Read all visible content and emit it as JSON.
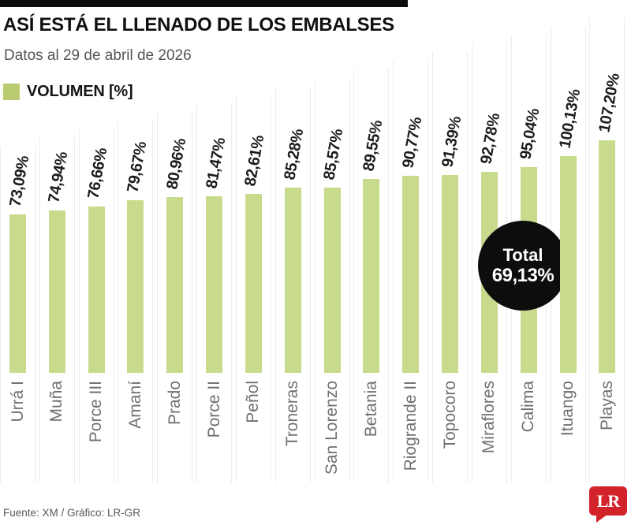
{
  "header": {
    "title": "ASÍ ESTÁ EL LLENADO DE LOS EMBALSES",
    "subtitle": "Datos al 29 de abril de 2026"
  },
  "legend": {
    "label": "VOLUMEN [%]",
    "swatch_color": "#b9cc72"
  },
  "chart_data": {
    "type": "bar",
    "title": "ASÍ ESTÁ EL LLENADO DE LOS EMBALSES",
    "subtitle": "Datos al 29 de abril de 2026",
    "ylabel": "VOLUMEN [%]",
    "ylim": [
      0,
      110
    ],
    "grid": false,
    "legend_position": "top-left",
    "categories": [
      "Urrá I",
      "Muña",
      "Porce III",
      "Amaní",
      "Prado",
      "Porce II",
      "Peñol",
      "Troneras",
      "San Lorenzo",
      "Betania",
      "Riogrande II",
      "Topocoro",
      "Miraflores",
      "Calima",
      "Ituango",
      "Playas"
    ],
    "values": [
      73.09,
      74.94,
      76.66,
      79.67,
      80.96,
      81.47,
      82.61,
      85.28,
      85.57,
      89.55,
      90.77,
      91.39,
      92.78,
      95.04,
      100.13,
      107.2
    ],
    "value_labels": [
      "73,09%",
      "74,94%",
      "76,66%",
      "79,67%",
      "80,96%",
      "81,47%",
      "82,61%",
      "85,28%",
      "85,57%",
      "89,55%",
      "90,77%",
      "91,39%",
      "92,78%",
      "95,04%",
      "100,13%",
      "107,20%"
    ],
    "bar_color": "#c8da8c",
    "annotation": {
      "label": "Total",
      "value": "69,13%"
    }
  },
  "total_badge": {
    "title": "Total",
    "value": "69,13%",
    "bg_color": "#0d0d0d",
    "text_color": "#ffffff"
  },
  "footer": {
    "source": "Fuente: XM / Gráfico: LR-GR"
  },
  "logo": {
    "text": "LR",
    "bg_color": "#d2232a",
    "text_color": "#ffffff"
  }
}
